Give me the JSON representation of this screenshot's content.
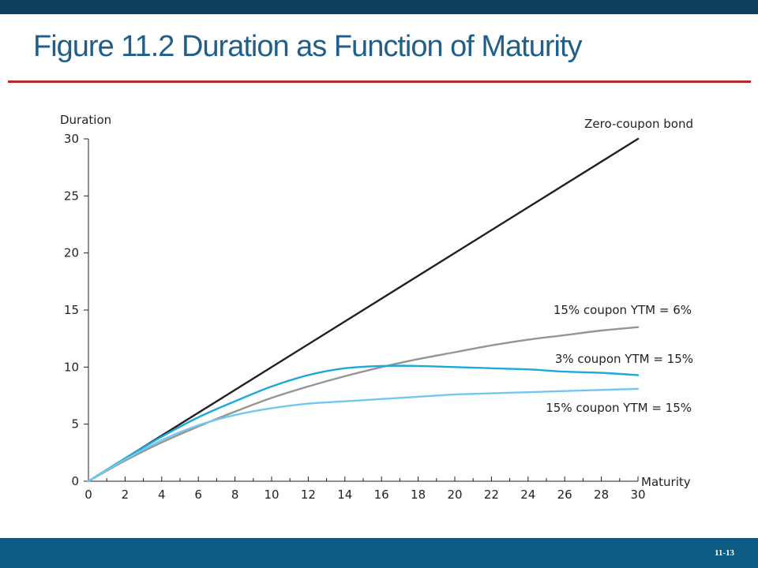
{
  "slide": {
    "title": "Figure 11.2 Duration as Function of Maturity",
    "number": "11-13"
  },
  "colors": {
    "header_bar": "#0d3f5c",
    "footer_bar": "#0d5a83",
    "title_text": "#1f5f8a",
    "title_rule": "#b22b2b"
  },
  "chart_data": {
    "type": "line",
    "title": "",
    "xlabel": "Maturity",
    "ylabel": "Duration",
    "xlim": [
      0,
      30
    ],
    "ylim": [
      0,
      30
    ],
    "x_ticks": [
      0,
      2,
      4,
      6,
      8,
      10,
      12,
      14,
      16,
      18,
      20,
      22,
      24,
      26,
      28,
      30
    ],
    "y_ticks": [
      0,
      5,
      10,
      15,
      20,
      25,
      30
    ],
    "grid": false,
    "legend": "inline labels at line ends",
    "series": [
      {
        "name": "Zero-coupon bond",
        "color": "#231f20",
        "x": [
          0,
          30
        ],
        "y": [
          0,
          30
        ]
      },
      {
        "name": "15% coupon YTM = 6%",
        "color": "#959595",
        "x": [
          0,
          2,
          4,
          6,
          8,
          10,
          12,
          14,
          16,
          18,
          20,
          22,
          24,
          26,
          28,
          30
        ],
        "y": [
          0,
          1.8,
          3.4,
          4.8,
          6.1,
          7.3,
          8.3,
          9.2,
          10.0,
          10.7,
          11.3,
          11.9,
          12.4,
          12.8,
          13.2,
          13.5
        ]
      },
      {
        "name": "3% coupon YTM = 15%",
        "color": "#1ba8db",
        "x": [
          0,
          2,
          4,
          6,
          8,
          10,
          12,
          14,
          16,
          18,
          20,
          22,
          24,
          26,
          28,
          30
        ],
        "y": [
          0,
          2.0,
          3.9,
          5.6,
          7.0,
          8.3,
          9.3,
          9.9,
          10.1,
          10.1,
          10.0,
          9.9,
          9.8,
          9.6,
          9.5,
          9.3
        ]
      },
      {
        "name": "15% coupon YTM = 15%",
        "color": "#71c8ef",
        "x": [
          0,
          2,
          4,
          6,
          8,
          10,
          12,
          14,
          16,
          18,
          20,
          22,
          24,
          26,
          28,
          30
        ],
        "y": [
          0,
          1.9,
          3.6,
          4.9,
          5.8,
          6.4,
          6.8,
          7.0,
          7.2,
          7.4,
          7.6,
          7.7,
          7.8,
          7.9,
          8.0,
          8.1
        ]
      }
    ]
  }
}
